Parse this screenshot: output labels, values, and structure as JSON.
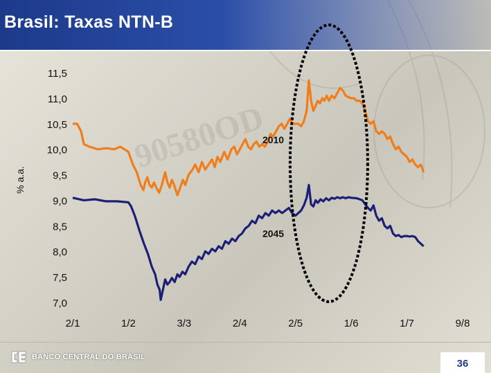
{
  "title": "Brasil: Taxas NTN-B",
  "footer": {
    "logo_text": "BANCO CENTRAL DO BRASIL",
    "page_number": "36"
  },
  "colors": {
    "series_2010": "#f07d1a",
    "series_2045": "#1c1f78",
    "title_bar": "#1d3a8a",
    "highlight_ellipse": "#000000"
  },
  "chart_data": {
    "type": "line",
    "title": "",
    "xlabel": "",
    "ylabel": "% a.a.",
    "ylim": [
      7.0,
      11.5
    ],
    "yticks": [
      "11,5",
      "11,0",
      "10,5",
      "10,0",
      "9,5",
      "9,0",
      "8,5",
      "8,0",
      "7,5",
      "7,0"
    ],
    "ytick_values": [
      11.5,
      11.0,
      10.5,
      10.0,
      9.5,
      9.0,
      8.5,
      8.0,
      7.5,
      7.0
    ],
    "xticks": [
      "2/1",
      "1/2",
      "3/3",
      "2/4",
      "2/5",
      "1/6",
      "1/7",
      "9/8"
    ],
    "grid": false,
    "highlight": {
      "shape": "dashed-ellipse",
      "x_range": [
        "2/5",
        "1/6"
      ]
    },
    "series": [
      {
        "name": "2010",
        "color": "#f07d1a",
        "points": [
          [
            0.0,
            10.5
          ],
          [
            0.08,
            10.5
          ],
          [
            0.15,
            10.35
          ],
          [
            0.2,
            10.1
          ],
          [
            0.3,
            10.05
          ],
          [
            0.45,
            10.0
          ],
          [
            0.6,
            10.02
          ],
          [
            0.75,
            10.0
          ],
          [
            0.85,
            10.05
          ],
          [
            1.0,
            9.95
          ],
          [
            1.08,
            9.7
          ],
          [
            1.15,
            9.55
          ],
          [
            1.22,
            9.3
          ],
          [
            1.27,
            9.2
          ],
          [
            1.3,
            9.35
          ],
          [
            1.34,
            9.45
          ],
          [
            1.38,
            9.3
          ],
          [
            1.42,
            9.25
          ],
          [
            1.46,
            9.35
          ],
          [
            1.5,
            9.25
          ],
          [
            1.55,
            9.15
          ],
          [
            1.6,
            9.3
          ],
          [
            1.66,
            9.55
          ],
          [
            1.7,
            9.35
          ],
          [
            1.74,
            9.25
          ],
          [
            1.78,
            9.4
          ],
          [
            1.82,
            9.3
          ],
          [
            1.88,
            9.1
          ],
          [
            1.93,
            9.25
          ],
          [
            1.98,
            9.4
          ],
          [
            2.02,
            9.3
          ],
          [
            2.08,
            9.5
          ],
          [
            2.15,
            9.6
          ],
          [
            2.2,
            9.7
          ],
          [
            2.26,
            9.55
          ],
          [
            2.32,
            9.75
          ],
          [
            2.38,
            9.6
          ],
          [
            2.44,
            9.7
          ],
          [
            2.5,
            9.8
          ],
          [
            2.55,
            9.65
          ],
          [
            2.6,
            9.85
          ],
          [
            2.65,
            9.75
          ],
          [
            2.72,
            9.95
          ],
          [
            2.78,
            9.8
          ],
          [
            2.85,
            10.0
          ],
          [
            2.9,
            10.05
          ],
          [
            2.95,
            9.9
          ],
          [
            3.0,
            10.0
          ],
          [
            3.05,
            10.1
          ],
          [
            3.1,
            10.2
          ],
          [
            3.15,
            10.05
          ],
          [
            3.2,
            10.0
          ],
          [
            3.25,
            10.1
          ],
          [
            3.3,
            10.15
          ],
          [
            3.35,
            10.05
          ],
          [
            3.4,
            10.1
          ],
          [
            3.45,
            10.05
          ],
          [
            3.5,
            10.15
          ],
          [
            3.55,
            10.3
          ],
          [
            3.6,
            10.25
          ],
          [
            3.65,
            10.35
          ],
          [
            3.7,
            10.45
          ],
          [
            3.75,
            10.5
          ],
          [
            3.8,
            10.4
          ],
          [
            3.85,
            10.5
          ],
          [
            3.9,
            10.6
          ],
          [
            3.95,
            10.5
          ],
          [
            4.0,
            10.5
          ],
          [
            4.05,
            10.5
          ],
          [
            4.1,
            10.45
          ],
          [
            4.15,
            10.55
          ],
          [
            4.2,
            10.75
          ],
          [
            4.24,
            11.35
          ],
          [
            4.28,
            10.95
          ],
          [
            4.32,
            10.75
          ],
          [
            4.36,
            10.85
          ],
          [
            4.4,
            10.95
          ],
          [
            4.44,
            10.9
          ],
          [
            4.48,
            11.0
          ],
          [
            4.52,
            10.95
          ],
          [
            4.56,
            11.05
          ],
          [
            4.6,
            10.95
          ],
          [
            4.65,
            11.05
          ],
          [
            4.7,
            11.0
          ],
          [
            4.75,
            11.1
          ],
          [
            4.8,
            11.2
          ],
          [
            4.85,
            11.15
          ],
          [
            4.9,
            11.05
          ],
          [
            4.95,
            11.02
          ],
          [
            5.0,
            11.0
          ],
          [
            5.05,
            11.0
          ],
          [
            5.1,
            10.95
          ],
          [
            5.15,
            10.95
          ],
          [
            5.2,
            10.9
          ],
          [
            5.25,
            10.75
          ],
          [
            5.3,
            10.55
          ],
          [
            5.35,
            10.5
          ],
          [
            5.4,
            10.55
          ],
          [
            5.45,
            10.35
          ],
          [
            5.5,
            10.3
          ],
          [
            5.55,
            10.35
          ],
          [
            5.6,
            10.3
          ],
          [
            5.65,
            10.2
          ],
          [
            5.7,
            10.25
          ],
          [
            5.75,
            10.1
          ],
          [
            5.8,
            10.0
          ],
          [
            5.85,
            10.05
          ],
          [
            5.9,
            9.95
          ],
          [
            5.95,
            9.9
          ],
          [
            6.0,
            9.85
          ],
          [
            6.05,
            9.75
          ],
          [
            6.1,
            9.8
          ],
          [
            6.15,
            9.7
          ],
          [
            6.2,
            9.65
          ],
          [
            6.25,
            9.7
          ],
          [
            6.3,
            9.55
          ]
        ]
      },
      {
        "name": "2045",
        "color": "#1c1f78",
        "points": [
          [
            0.0,
            9.05
          ],
          [
            0.2,
            9.0
          ],
          [
            0.4,
            9.02
          ],
          [
            0.6,
            8.98
          ],
          [
            0.8,
            8.98
          ],
          [
            1.0,
            8.96
          ],
          [
            1.05,
            8.88
          ],
          [
            1.12,
            8.68
          ],
          [
            1.2,
            8.4
          ],
          [
            1.28,
            8.15
          ],
          [
            1.35,
            7.95
          ],
          [
            1.42,
            7.7
          ],
          [
            1.48,
            7.55
          ],
          [
            1.52,
            7.35
          ],
          [
            1.56,
            7.25
          ],
          [
            1.58,
            7.05
          ],
          [
            1.6,
            7.15
          ],
          [
            1.63,
            7.3
          ],
          [
            1.66,
            7.45
          ],
          [
            1.7,
            7.35
          ],
          [
            1.74,
            7.4
          ],
          [
            1.78,
            7.48
          ],
          [
            1.83,
            7.4
          ],
          [
            1.88,
            7.55
          ],
          [
            1.92,
            7.5
          ],
          [
            1.97,
            7.6
          ],
          [
            2.02,
            7.55
          ],
          [
            2.08,
            7.7
          ],
          [
            2.14,
            7.8
          ],
          [
            2.2,
            7.75
          ],
          [
            2.26,
            7.9
          ],
          [
            2.32,
            7.85
          ],
          [
            2.38,
            8.0
          ],
          [
            2.44,
            7.95
          ],
          [
            2.5,
            8.05
          ],
          [
            2.56,
            8.0
          ],
          [
            2.62,
            8.1
          ],
          [
            2.68,
            8.05
          ],
          [
            2.74,
            8.2
          ],
          [
            2.8,
            8.15
          ],
          [
            2.86,
            8.25
          ],
          [
            2.92,
            8.2
          ],
          [
            2.98,
            8.3
          ],
          [
            3.04,
            8.35
          ],
          [
            3.1,
            8.45
          ],
          [
            3.16,
            8.5
          ],
          [
            3.22,
            8.6
          ],
          [
            3.28,
            8.55
          ],
          [
            3.34,
            8.7
          ],
          [
            3.4,
            8.65
          ],
          [
            3.46,
            8.75
          ],
          [
            3.52,
            8.7
          ],
          [
            3.58,
            8.8
          ],
          [
            3.64,
            8.75
          ],
          [
            3.7,
            8.8
          ],
          [
            3.76,
            8.75
          ],
          [
            3.82,
            8.8
          ],
          [
            3.88,
            8.85
          ],
          [
            3.94,
            8.75
          ],
          [
            4.0,
            8.7
          ],
          [
            4.05,
            8.75
          ],
          [
            4.1,
            8.8
          ],
          [
            4.15,
            8.9
          ],
          [
            4.2,
            9.05
          ],
          [
            4.24,
            9.3
          ],
          [
            4.28,
            8.92
          ],
          [
            4.32,
            8.88
          ],
          [
            4.36,
            9.0
          ],
          [
            4.4,
            8.95
          ],
          [
            4.45,
            9.02
          ],
          [
            4.5,
            8.98
          ],
          [
            4.55,
            9.04
          ],
          [
            4.6,
            9.0
          ],
          [
            4.65,
            9.05
          ],
          [
            4.7,
            9.03
          ],
          [
            4.75,
            9.06
          ],
          [
            4.8,
            9.04
          ],
          [
            4.85,
            9.06
          ],
          [
            4.9,
            9.04
          ],
          [
            4.95,
            9.06
          ],
          [
            5.0,
            9.05
          ],
          [
            5.1,
            9.04
          ],
          [
            5.2,
            9.0
          ],
          [
            5.3,
            8.85
          ],
          [
            5.35,
            8.8
          ],
          [
            5.4,
            8.9
          ],
          [
            5.45,
            8.7
          ],
          [
            5.5,
            8.6
          ],
          [
            5.55,
            8.65
          ],
          [
            5.6,
            8.5
          ],
          [
            5.65,
            8.45
          ],
          [
            5.7,
            8.5
          ],
          [
            5.75,
            8.35
          ],
          [
            5.8,
            8.3
          ],
          [
            5.85,
            8.32
          ],
          [
            5.9,
            8.28
          ],
          [
            5.95,
            8.3
          ],
          [
            6.0,
            8.3
          ],
          [
            6.05,
            8.29
          ],
          [
            6.1,
            8.3
          ],
          [
            6.15,
            8.28
          ],
          [
            6.2,
            8.2
          ],
          [
            6.25,
            8.15
          ],
          [
            6.3,
            8.1
          ]
        ]
      }
    ]
  }
}
